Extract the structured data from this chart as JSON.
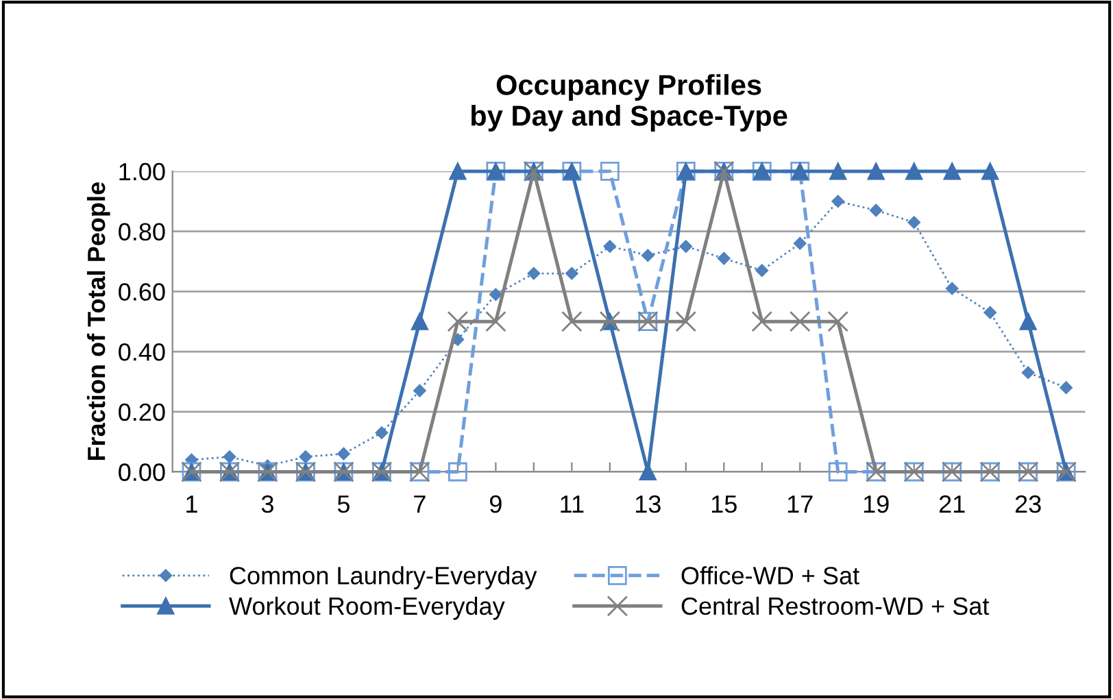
{
  "chart_data": {
    "type": "line",
    "title": "Occupancy Profiles\nby Day and Space-Type",
    "ylabel": "Fraction of Total People",
    "categories": [
      "1",
      null,
      "3",
      null,
      "5",
      null,
      "7",
      null,
      "9",
      null,
      "11",
      null,
      "13",
      null,
      "15",
      null,
      "17",
      null,
      "19",
      null,
      "21",
      null,
      "23",
      null
    ],
    "ylim": [
      0,
      1
    ],
    "yticks": [
      {
        "value": 0,
        "label": "0.00"
      },
      {
        "value": 0.2,
        "label": "0.20"
      },
      {
        "value": 0.4,
        "label": "0.40"
      },
      {
        "value": 0.6,
        "label": "0.60"
      },
      {
        "value": 0.8,
        "label": "0.80"
      },
      {
        "value": 1,
        "label": "1.00"
      }
    ],
    "grid": "y",
    "legend": "bottom",
    "series": [
      {
        "name": "Common Laundry-Everyday",
        "color": "#4f81bd",
        "marker": "diamond",
        "line_style": "dotted",
        "values": [
          0.04,
          0.05,
          0.02,
          0.05,
          0.06,
          0.13,
          0.27,
          0.44,
          0.59,
          0.66,
          0.66,
          0.75,
          0.72,
          0.75,
          0.71,
          0.67,
          0.76,
          0.9,
          0.87,
          0.83,
          0.61,
          0.53,
          0.33,
          0.28
        ]
      },
      {
        "name": "Office-WD + Sat",
        "color": "#6f9fdc",
        "marker": "square",
        "line_style": "dashed",
        "values": [
          0,
          0,
          0,
          0,
          0,
          0,
          0,
          0,
          1,
          1,
          1,
          1,
          0.5,
          1,
          1,
          1,
          1,
          0,
          0,
          0,
          0,
          0,
          0,
          0
        ]
      },
      {
        "name": "Workout Room-Everyday",
        "color": "#3c70b0",
        "marker": "triangle",
        "line_style": "solid",
        "values": [
          0,
          0,
          0,
          0,
          0,
          0,
          0.5,
          1,
          1,
          1,
          1,
          0.5,
          0,
          1,
          1,
          1,
          1,
          1,
          1,
          1,
          1,
          1,
          0.5,
          0
        ]
      },
      {
        "name": "Central Restroom-WD + Sat",
        "color": "#808080",
        "marker": "cross",
        "line_style": "solid",
        "values": [
          0,
          0,
          0,
          0,
          0,
          0,
          0,
          0.5,
          0.5,
          1,
          0.5,
          0.5,
          0.5,
          0.5,
          1,
          0.5,
          0.5,
          0.5,
          0,
          0,
          0,
          0,
          0,
          0
        ]
      }
    ]
  }
}
